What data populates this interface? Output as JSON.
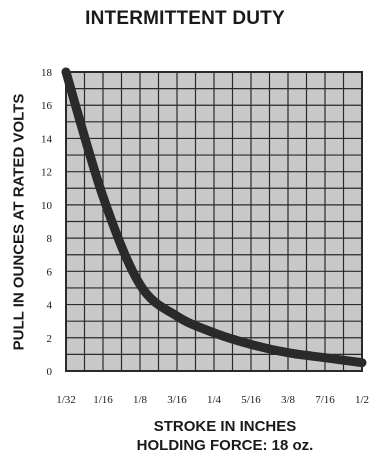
{
  "chart_data": {
    "type": "line",
    "title": "INTERMITTENT DUTY",
    "xlabel": "STROKE IN INCHES",
    "ylabel": "PULL IN OUNCES AT RATED VOLTS",
    "note": "HOLDING FORCE: 18 oz.",
    "categories": [
      "1/32",
      "1/16",
      "1/8",
      "3/16",
      "1/4",
      "5/16",
      "3/8",
      "7/16",
      "1/2"
    ],
    "y_ticks": [
      "0",
      "2",
      "4",
      "6",
      "8",
      "10",
      "12",
      "14",
      "16",
      "18"
    ],
    "ylim": [
      0,
      18
    ],
    "grid": true,
    "x": [
      0.03125,
      0.0625,
      0.125,
      0.1875,
      0.25,
      0.3125,
      0.375,
      0.4375,
      0.5
    ],
    "series": [
      {
        "values": [
          18,
          10.5,
          5.2,
          3.3,
          2.3,
          1.6,
          1.1,
          0.8,
          0.5
        ]
      }
    ],
    "colors": {
      "plot_bg": "#c8c8c8",
      "grid": "#2a2a2a",
      "line": "#2a2a2a"
    }
  }
}
